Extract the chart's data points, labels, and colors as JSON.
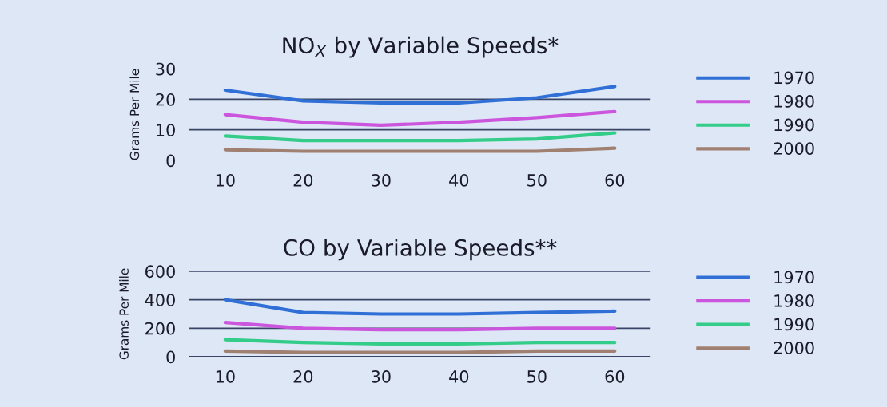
{
  "chart_data": [
    {
      "type": "line",
      "title": "NO$_{X}$ by Variable Speeds*",
      "ylabel": "Grams Per Mile",
      "x": [
        10,
        20,
        30,
        40,
        50,
        60
      ],
      "xlim": [
        5.4,
        64.6
      ],
      "xticks": [
        10,
        20,
        30,
        40,
        50,
        60
      ],
      "ylim": [
        0,
        30
      ],
      "yticks": [
        0,
        10,
        20,
        30
      ],
      "grid": "y",
      "legend": "right",
      "marker": "none",
      "line_style": "solid",
      "series": [
        {
          "name": "1970",
          "color": "#2f6fd6",
          "values": [
            23,
            19.5,
            18.8,
            18.8,
            20.5,
            24.2
          ]
        },
        {
          "name": "1980",
          "color": "#cc55dd",
          "values": [
            15,
            12.5,
            11.5,
            12.5,
            14,
            16
          ]
        },
        {
          "name": "1990",
          "color": "#33cc88",
          "values": [
            8,
            6.5,
            6.5,
            6.5,
            7,
            9
          ]
        },
        {
          "name": "2000",
          "color": "#a08070",
          "values": [
            3.5,
            3,
            3,
            3,
            3,
            4
          ]
        }
      ]
    },
    {
      "type": "line",
      "title": "CO by Variable Speeds**",
      "ylabel": "Grams Per Mile",
      "x": [
        10,
        20,
        30,
        40,
        50,
        60
      ],
      "xlim": [
        5.4,
        64.6
      ],
      "xticks": [
        10,
        20,
        30,
        40,
        50,
        60
      ],
      "ylim": [
        0,
        600
      ],
      "yticks": [
        0,
        200,
        400,
        600
      ],
      "grid": "y",
      "legend": "right",
      "marker": "none",
      "line_style": "solid",
      "series": [
        {
          "name": "1970",
          "color": "#2f6fd6",
          "values": [
            400,
            310,
            300,
            300,
            310,
            320
          ]
        },
        {
          "name": "1980",
          "color": "#cc55dd",
          "values": [
            240,
            200,
            190,
            190,
            200,
            200
          ]
        },
        {
          "name": "1990",
          "color": "#33cc88",
          "values": [
            120,
            100,
            90,
            90,
            100,
            100
          ]
        },
        {
          "name": "2000",
          "color": "#a08070",
          "values": [
            40,
            30,
            30,
            30,
            40,
            40
          ]
        }
      ]
    }
  ]
}
